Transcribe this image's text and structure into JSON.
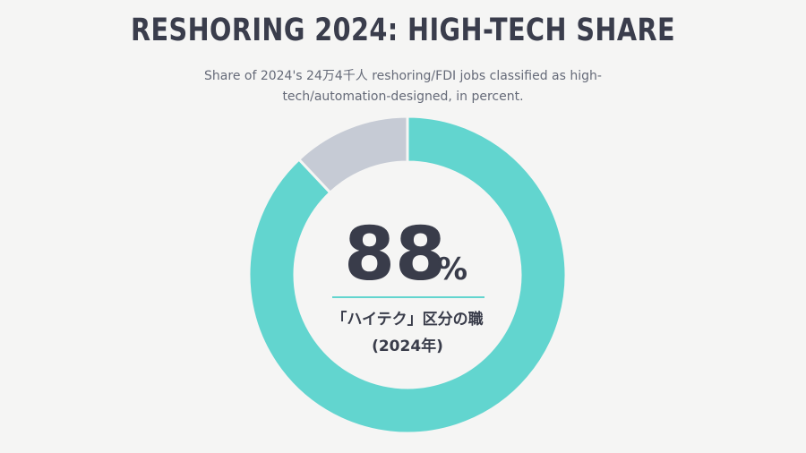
{
  "title": "RESHORING 2024: HIGH-TECH SHARE",
  "subtitle": "Share of 2024's 24万4千人 reshoring/FDI jobs classified as high-tech/automation-designed, in percent.",
  "center": {
    "value": "88",
    "unit": "%",
    "label_line1": "「ハイテク」区分の職",
    "label_line2": "(2024年)"
  },
  "colors": {
    "high_tech": "#62d5cf",
    "other": "#c6cbd5",
    "divider": "#62d5cf",
    "text_dark": "#393c4a"
  },
  "chart_data": {
    "type": "pie",
    "style": "donut",
    "title": "RESHORING 2024: HIGH-TECH SHARE",
    "subtitle": "Share of 2024's 24万4千人 reshoring/FDI jobs classified as high-tech/automation-designed, in percent.",
    "categories": [
      "「ハイテク」区分の職",
      ""
    ],
    "values": [
      88,
      12
    ],
    "unit": "%",
    "start_angle_deg": 0,
    "direction": "clockwise",
    "legend": "none"
  }
}
